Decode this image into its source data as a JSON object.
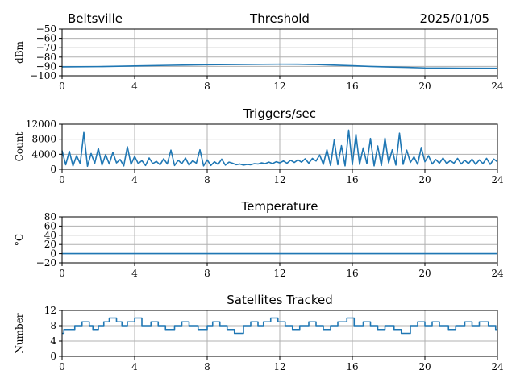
{
  "header": {
    "location": "Beltsville",
    "date": "2025/01/05"
  },
  "colors": {
    "line": "#1f77b4",
    "grid": "#b0b0b0",
    "axis": "#000000"
  },
  "chart_data": [
    {
      "type": "line",
      "title": "Threshold",
      "xlabel": "",
      "ylabel": "dBm",
      "xlim": [
        0,
        24
      ],
      "ylim": [
        -100,
        -50
      ],
      "xticks": [
        0,
        4,
        8,
        12,
        16,
        20,
        24
      ],
      "yticks": [
        -100,
        -90,
        -80,
        -70,
        -60,
        -50
      ],
      "ytick_labels": [
        "−100",
        "−90",
        "−80",
        "−70",
        "−60",
        "−50"
      ],
      "grid": true,
      "series": [
        {
          "x": [
            0,
            2,
            4,
            6,
            8,
            10,
            12,
            13,
            14,
            15,
            16,
            17,
            18,
            19,
            20,
            22,
            24
          ],
          "values": [
            -90.5,
            -90.2,
            -89.5,
            -88.8,
            -88.2,
            -87.9,
            -87.6,
            -87.7,
            -88.0,
            -88.6,
            -89.3,
            -90.0,
            -90.6,
            -91.0,
            -91.6,
            -91.9,
            -92.0
          ]
        }
      ]
    },
    {
      "type": "line",
      "title": "Triggers/sec",
      "xlabel": "",
      "ylabel": "Count",
      "xlim": [
        0,
        24
      ],
      "ylim": [
        0,
        12000
      ],
      "xticks": [
        0,
        4,
        8,
        12,
        16,
        20,
        24
      ],
      "yticks": [
        0,
        4000,
        8000,
        12000
      ],
      "ytick_labels": [
        "0",
        "4000",
        "8000",
        "12000"
      ],
      "grid": true,
      "series": [
        {
          "x": [
            0,
            0.2,
            0.4,
            0.6,
            0.8,
            1.0,
            1.2,
            1.4,
            1.6,
            1.8,
            2.0,
            2.2,
            2.4,
            2.6,
            2.8,
            3.0,
            3.2,
            3.4,
            3.6,
            3.8,
            4.0,
            4.2,
            4.4,
            4.6,
            4.8,
            5.0,
            5.2,
            5.4,
            5.6,
            5.8,
            6.0,
            6.2,
            6.4,
            6.6,
            6.8,
            7.0,
            7.2,
            7.4,
            7.6,
            7.8,
            8.0,
            8.2,
            8.4,
            8.6,
            8.8,
            9.0,
            9.2,
            9.4,
            9.6,
            9.8,
            10.0,
            10.2,
            10.4,
            10.6,
            10.8,
            11.0,
            11.2,
            11.4,
            11.6,
            11.8,
            12.0,
            12.2,
            12.4,
            12.6,
            12.8,
            13.0,
            13.2,
            13.4,
            13.6,
            13.8,
            14.0,
            14.2,
            14.4,
            14.6,
            14.8,
            15.0,
            15.2,
            15.4,
            15.6,
            15.8,
            16.0,
            16.2,
            16.4,
            16.6,
            16.8,
            17.0,
            17.2,
            17.4,
            17.6,
            17.8,
            18.0,
            18.2,
            18.4,
            18.6,
            18.8,
            19.0,
            19.2,
            19.4,
            19.6,
            19.8,
            20.0,
            20.2,
            20.4,
            20.6,
            20.8,
            21.0,
            21.2,
            21.4,
            21.6,
            21.8,
            22.0,
            22.2,
            22.4,
            22.6,
            22.8,
            23.0,
            23.2,
            23.4,
            23.6,
            23.8,
            24.0
          ],
          "values": [
            5000,
            1200,
            4800,
            900,
            3600,
            1500,
            9800,
            800,
            4200,
            1600,
            5600,
            1100,
            3900,
            1400,
            4500,
            1700,
            2600,
            900,
            6000,
            1300,
            3400,
            1500,
            2300,
            1000,
            3000,
            1500,
            2100,
            1200,
            2800,
            1400,
            5100,
            1000,
            2400,
            1500,
            3000,
            1100,
            2300,
            1600,
            5200,
            900,
            2500,
            1000,
            2000,
            1300,
            2700,
            1100,
            1900,
            1600,
            1200,
            1400,
            1100,
            1300,
            1200,
            1500,
            1400,
            1700,
            1500,
            1900,
            1500,
            2000,
            1700,
            2200,
            1600,
            2400,
            1800,
            2500,
            1900,
            2800,
            1600,
            2900,
            2200,
            3800,
            1300,
            5200,
            1000,
            7800,
            1200,
            6300,
            900,
            10400,
            1200,
            9300,
            1300,
            5700,
            1500,
            8200,
            900,
            6200,
            1000,
            8300,
            1700,
            5200,
            1100,
            9600,
            1300,
            5100,
            1800,
            3300,
            1300,
            5800,
            2000,
            3600,
            1400,
            2600,
            1600,
            3000,
            1500,
            2300,
            1600,
            2900,
            1400,
            2400,
            1500,
            2700,
            1300,
            2500,
            1500,
            2900,
            1300,
            2700,
            2000
          ]
        }
      ]
    },
    {
      "type": "line",
      "title": "Temperature",
      "xlabel": "",
      "ylabel": "°C",
      "xlim": [
        0,
        24
      ],
      "ylim": [
        -20,
        80
      ],
      "xticks": [
        0,
        4,
        8,
        12,
        16,
        20,
        24
      ],
      "yticks": [
        -20,
        0,
        20,
        40,
        60,
        80
      ],
      "ytick_labels": [
        "−20",
        "0",
        "20",
        "40",
        "60",
        "80"
      ],
      "grid": true,
      "series": [
        {
          "x": [
            0,
            24
          ],
          "values": [
            0,
            0
          ]
        }
      ]
    },
    {
      "type": "line",
      "title": "Satellites Tracked",
      "xlabel": "",
      "ylabel": "Number",
      "xlim": [
        0,
        24
      ],
      "ylim": [
        0,
        12
      ],
      "xticks": [
        0,
        4,
        8,
        12,
        16,
        20,
        24
      ],
      "yticks": [
        0,
        4,
        8,
        12
      ],
      "ytick_labels": [
        "0",
        "4",
        "8",
        "12"
      ],
      "grid": true,
      "step": true,
      "series": [
        {
          "x": [
            0,
            0.1,
            0.4,
            0.7,
            1.1,
            1.5,
            1.7,
            2.0,
            2.3,
            2.6,
            3.0,
            3.3,
            3.6,
            4.0,
            4.4,
            4.9,
            5.3,
            5.7,
            6.2,
            6.6,
            7.0,
            7.5,
            8.0,
            8.3,
            8.7,
            9.1,
            9.5,
            10.0,
            10.4,
            10.8,
            11.1,
            11.5,
            11.9,
            12.3,
            12.7,
            13.1,
            13.6,
            14.0,
            14.4,
            14.8,
            15.2,
            15.7,
            16.1,
            16.6,
            17.0,
            17.4,
            17.8,
            18.3,
            18.7,
            19.2,
            19.6,
            20.0,
            20.4,
            20.8,
            21.3,
            21.7,
            22.2,
            22.6,
            23.0,
            23.5,
            23.9
          ],
          "values": [
            6,
            7,
            7,
            8,
            9,
            8,
            7,
            8,
            9,
            10,
            9,
            8,
            9,
            10,
            8,
            9,
            8,
            7,
            8,
            9,
            8,
            7,
            8,
            9,
            8,
            7,
            6,
            8,
            9,
            8,
            9,
            10,
            9,
            8,
            7,
            8,
            9,
            8,
            7,
            8,
            9,
            10,
            8,
            9,
            8,
            7,
            8,
            7,
            6,
            8,
            9,
            8,
            9,
            8,
            7,
            8,
            9,
            8,
            9,
            8,
            7
          ]
        }
      ]
    }
  ]
}
